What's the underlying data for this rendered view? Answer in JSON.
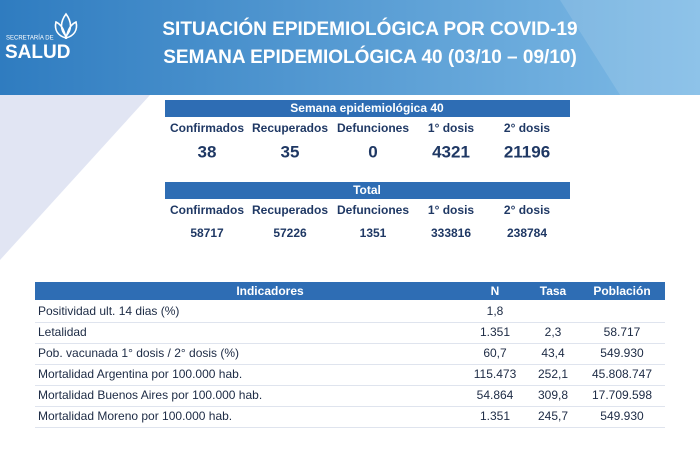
{
  "logo": {
    "line1": "SECRETARÍA DE",
    "line2": "SALUD"
  },
  "header": {
    "title_line1": "SITUACIÓN EPIDEMIOLÓGICA POR COVID-19",
    "title_line2": "SEMANA EPIDEMIOLÓGICA 40 (03/10 – 09/10)"
  },
  "weekly": {
    "title": "Semana epidemiológica 40",
    "columns": [
      "Confirmados",
      "Recuperados",
      "Defunciones",
      "1° dosis",
      "2° dosis"
    ],
    "values": [
      "38",
      "35",
      "0",
      "4321",
      "21196"
    ]
  },
  "total": {
    "title": "Total",
    "columns": [
      "Confirmados",
      "Recuperados",
      "Defunciones",
      "1° dosis",
      "2° dosis"
    ],
    "values": [
      "58717",
      "57226",
      "1351",
      "333816",
      "238784"
    ]
  },
  "table": {
    "headers": [
      "Indicadores",
      "N",
      "Tasa",
      "Población"
    ],
    "rows": [
      [
        "Positividad ult. 14 dias (%)",
        "1,8"
      ],
      [
        "Letalidad",
        "1.351",
        "2,3",
        "58.717"
      ],
      [
        "Pob. vacunada 1° dosis / 2° dosis (%)",
        "60,7",
        "43,4",
        "549.930"
      ],
      [
        "Mortalidad Argentina por 100.000 hab.",
        "115.473",
        "252,1",
        "45.808.747"
      ],
      [
        "Mortalidad Buenos Aires por 100.000 hab.",
        "54.864",
        "309,8",
        "17.709.598"
      ],
      [
        "Mortalidad Moreno por 100.000 hab.",
        "1.351",
        "245,7",
        "549.930"
      ]
    ]
  }
}
